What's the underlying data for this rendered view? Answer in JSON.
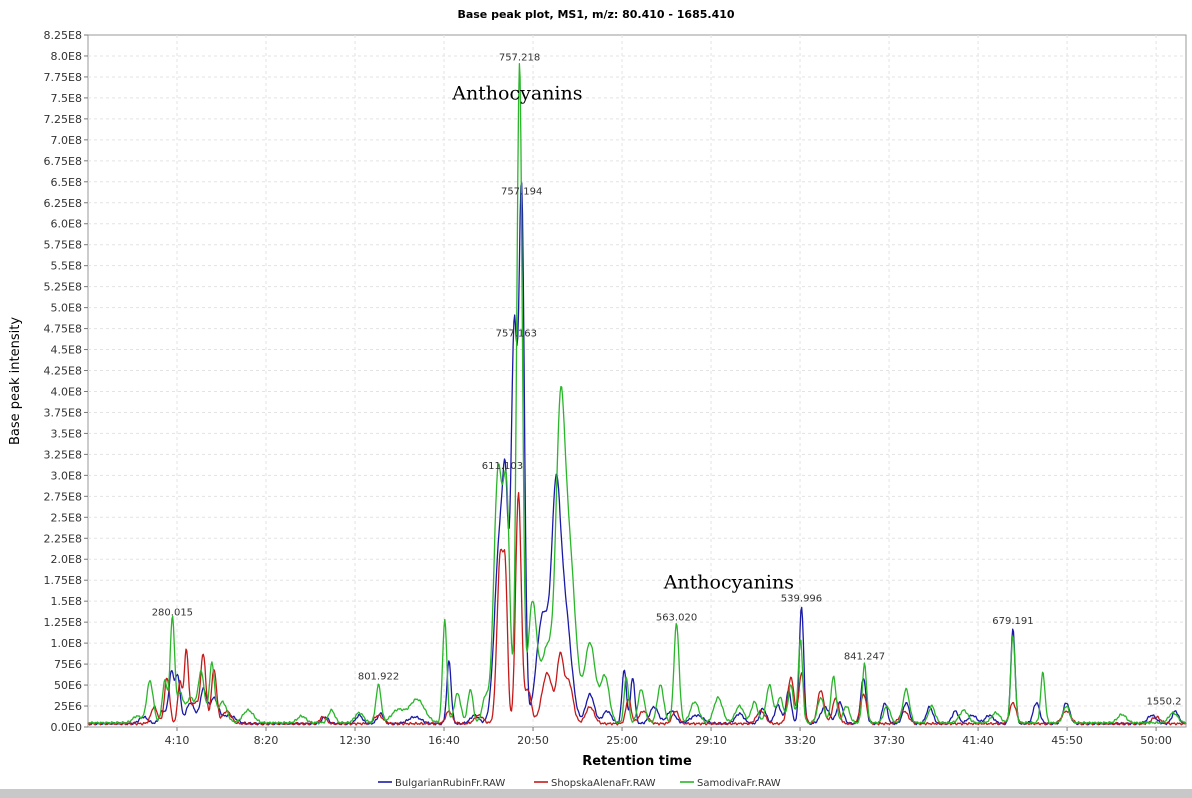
{
  "chart_data": {
    "type": "line",
    "title": "Base peak plot, MS1, m/z: 80.410 - 1685.410",
    "xlabel": "Retention time",
    "ylabel": "Base peak intensity",
    "x_unit": "minutes",
    "xlim": [
      0,
      51.4
    ],
    "ylim": [
      0,
      825000000
    ],
    "y_ticks": [
      "0.0E0",
      "25E6",
      "50E6",
      "75E6",
      "1.0E8",
      "1.25E8",
      "1.5E8",
      "1.75E8",
      "2.0E8",
      "2.25E8",
      "2.5E8",
      "2.75E8",
      "3.0E8",
      "3.25E8",
      "3.5E8",
      "3.75E8",
      "4.0E8",
      "4.25E8",
      "4.5E8",
      "4.75E8",
      "5.0E8",
      "5.25E8",
      "5.5E8",
      "5.75E8",
      "6.0E8",
      "6.25E8",
      "6.5E8",
      "6.75E8",
      "7.0E8",
      "7.25E8",
      "7.5E8",
      "7.75E8",
      "8.0E8",
      "8.25E8"
    ],
    "x_ticks": [
      {
        "label": "4:10",
        "value": 4.1667
      },
      {
        "label": "8:20",
        "value": 8.3333
      },
      {
        "label": "12:30",
        "value": 12.5
      },
      {
        "label": "16:40",
        "value": 16.6667
      },
      {
        "label": "20:50",
        "value": 20.8333
      },
      {
        "label": "25:00",
        "value": 25.0
      },
      {
        "label": "29:10",
        "value": 29.1667
      },
      {
        "label": "33:20",
        "value": 33.3333
      },
      {
        "label": "37:30",
        "value": 37.5
      },
      {
        "label": "41:40",
        "value": 41.6667
      },
      {
        "label": "45:50",
        "value": 45.8333
      },
      {
        "label": "50:00",
        "value": 50.0
      }
    ],
    "grid": true,
    "legend_position": "bottom",
    "series": [
      {
        "name": "BulgarianRubinFr.RAW",
        "color": "#1a1aa6",
        "baseline": 4000000,
        "peaks": [
          [
            2.6,
            8000000.0,
            0.2
          ],
          [
            3.5,
            15000000.0,
            0.15
          ],
          [
            3.9,
            60000000.0,
            0.12
          ],
          [
            4.2,
            55000000.0,
            0.12
          ],
          [
            4.8,
            25000000.0,
            0.2
          ],
          [
            5.4,
            40000000.0,
            0.15
          ],
          [
            5.9,
            30000000.0,
            0.2
          ],
          [
            6.6,
            10000000.0,
            0.3
          ],
          [
            11.1,
            8000000.0,
            0.15
          ],
          [
            12.7,
            10000000.0,
            0.15
          ],
          [
            13.7,
            12000000.0,
            0.15
          ],
          [
            15.3,
            8000000.0,
            0.3
          ],
          [
            16.9,
            75000000.0,
            0.1
          ],
          [
            18.1,
            10000000.0,
            0.2
          ],
          [
            19.3,
            230000000.0,
            0.25
          ],
          [
            19.55,
            160000000.0,
            0.12
          ],
          [
            19.95,
            460000000.0,
            0.14
          ],
          [
            20.3,
            625000000.0,
            0.13
          ],
          [
            21.3,
            130000000.0,
            0.3
          ],
          [
            21.9,
            220000000.0,
            0.2
          ],
          [
            22.3,
            140000000.0,
            0.3
          ],
          [
            23.5,
            35000000.0,
            0.2
          ],
          [
            24.3,
            15000000.0,
            0.2
          ],
          [
            25.1,
            65000000.0,
            0.1
          ],
          [
            25.5,
            55000000.0,
            0.1
          ],
          [
            26.5,
            20000000.0,
            0.2
          ],
          [
            27.3,
            15000000.0,
            0.2
          ],
          [
            28.5,
            10000000.0,
            0.3
          ],
          [
            30.5,
            12000000.0,
            0.2
          ],
          [
            31.6,
            18000000.0,
            0.15
          ],
          [
            32.3,
            22000000.0,
            0.15
          ],
          [
            32.8,
            40000000.0,
            0.12
          ],
          [
            33.4,
            140000000.0,
            0.1
          ],
          [
            34.5,
            20000000.0,
            0.2
          ],
          [
            35.2,
            25000000.0,
            0.15
          ],
          [
            36.3,
            55000000.0,
            0.12
          ],
          [
            37.3,
            25000000.0,
            0.12
          ],
          [
            38.3,
            25000000.0,
            0.15
          ],
          [
            39.4,
            20000000.0,
            0.15
          ],
          [
            40.6,
            15000000.0,
            0.15
          ],
          [
            41.4,
            10000000.0,
            0.2
          ],
          [
            42.2,
            10000000.0,
            0.2
          ],
          [
            43.3,
            113000000.0,
            0.1
          ],
          [
            44.4,
            25000000.0,
            0.15
          ],
          [
            45.8,
            25000000.0,
            0.15
          ],
          [
            49.8,
            10000000.0,
            0.2
          ],
          [
            50.9,
            15000000.0,
            0.15
          ]
        ]
      },
      {
        "name": "ShopskaAlenaFr.RAW",
        "color": "#c41a1a",
        "baseline": 4000000,
        "peaks": [
          [
            3.1,
            20000000.0,
            0.15
          ],
          [
            3.7,
            55000000.0,
            0.12
          ],
          [
            4.3,
            50000000.0,
            0.1
          ],
          [
            4.6,
            85000000.0,
            0.1
          ],
          [
            5.0,
            25000000.0,
            0.2
          ],
          [
            5.4,
            80000000.0,
            0.12
          ],
          [
            5.9,
            65000000.0,
            0.12
          ],
          [
            6.5,
            15000000.0,
            0.2
          ],
          [
            11.0,
            8000000.0,
            0.15
          ],
          [
            13.6,
            10000000.0,
            0.2
          ],
          [
            16.9,
            15000000.0,
            0.15
          ],
          [
            18.3,
            10000000.0,
            0.2
          ],
          [
            19.3,
            200000000.0,
            0.15
          ],
          [
            19.55,
            140000000.0,
            0.1
          ],
          [
            20.15,
            275000000.0,
            0.13
          ],
          [
            20.6,
            40000000.0,
            0.15
          ],
          [
            21.5,
            60000000.0,
            0.25
          ],
          [
            22.1,
            75000000.0,
            0.15
          ],
          [
            22.5,
            50000000.0,
            0.2
          ],
          [
            23.5,
            20000000.0,
            0.2
          ],
          [
            25.3,
            30000000.0,
            0.12
          ],
          [
            26.0,
            15000000.0,
            0.2
          ],
          [
            27.5,
            15000000.0,
            0.15
          ],
          [
            31.5,
            15000000.0,
            0.2
          ],
          [
            32.9,
            55000000.0,
            0.15
          ],
          [
            33.4,
            60000000.0,
            0.12
          ],
          [
            34.3,
            40000000.0,
            0.15
          ],
          [
            35.0,
            30000000.0,
            0.15
          ],
          [
            36.3,
            35000000.0,
            0.15
          ],
          [
            38.2,
            15000000.0,
            0.2
          ],
          [
            43.3,
            25000000.0,
            0.15
          ],
          [
            45.8,
            15000000.0,
            0.2
          ],
          [
            50.0,
            8000000.0,
            0.2
          ]
        ]
      },
      {
        "name": "SamodivaFr.RAW",
        "color": "#2ab52a",
        "baseline": 5000000,
        "peaks": [
          [
            2.3,
            8000000.0,
            0.2
          ],
          [
            2.9,
            50000000.0,
            0.15
          ],
          [
            3.6,
            50000000.0,
            0.12
          ],
          [
            3.95,
            125000000.0,
            0.1
          ],
          [
            4.3,
            35000000.0,
            0.15
          ],
          [
            4.8,
            30000000.0,
            0.2
          ],
          [
            5.3,
            60000000.0,
            0.15
          ],
          [
            5.8,
            70000000.0,
            0.12
          ],
          [
            6.3,
            25000000.0,
            0.2
          ],
          [
            7.5,
            15000000.0,
            0.25
          ],
          [
            10.0,
            8000000.0,
            0.2
          ],
          [
            11.4,
            15000000.0,
            0.15
          ],
          [
            12.7,
            12000000.0,
            0.2
          ],
          [
            13.6,
            45000000.0,
            0.12
          ],
          [
            14.5,
            15000000.0,
            0.3
          ],
          [
            15.4,
            28000000.0,
            0.35
          ],
          [
            16.7,
            123000000.0,
            0.1
          ],
          [
            17.3,
            35000000.0,
            0.15
          ],
          [
            17.9,
            40000000.0,
            0.12
          ],
          [
            18.6,
            30000000.0,
            0.15
          ],
          [
            19.2,
            300000000.0,
            0.2
          ],
          [
            19.6,
            250000000.0,
            0.15
          ],
          [
            20.2,
            785000000.0,
            0.13
          ],
          [
            20.8,
            140000000.0,
            0.2
          ],
          [
            21.5,
            90000000.0,
            0.3
          ],
          [
            22.1,
            295000000.0,
            0.2
          ],
          [
            22.5,
            210000000.0,
            0.3
          ],
          [
            23.5,
            95000000.0,
            0.25
          ],
          [
            24.2,
            55000000.0,
            0.2
          ],
          [
            25.2,
            55000000.0,
            0.1
          ],
          [
            25.9,
            40000000.0,
            0.15
          ],
          [
            26.8,
            45000000.0,
            0.15
          ],
          [
            27.55,
            118000000.0,
            0.12
          ],
          [
            28.4,
            25000000.0,
            0.2
          ],
          [
            29.5,
            30000000.0,
            0.2
          ],
          [
            30.5,
            20000000.0,
            0.2
          ],
          [
            31.2,
            25000000.0,
            0.15
          ],
          [
            31.9,
            45000000.0,
            0.15
          ],
          [
            32.4,
            30000000.0,
            0.15
          ],
          [
            32.9,
            45000000.0,
            0.12
          ],
          [
            33.35,
            100000000.0,
            0.1
          ],
          [
            34.3,
            30000000.0,
            0.15
          ],
          [
            34.9,
            55000000.0,
            0.12
          ],
          [
            35.5,
            20000000.0,
            0.15
          ],
          [
            36.35,
            70000000.0,
            0.1
          ],
          [
            37.4,
            20000000.0,
            0.15
          ],
          [
            38.3,
            40000000.0,
            0.15
          ],
          [
            39.5,
            20000000.0,
            0.15
          ],
          [
            41.0,
            15000000.0,
            0.2
          ],
          [
            42.5,
            12000000.0,
            0.2
          ],
          [
            43.3,
            105000000.0,
            0.1
          ],
          [
            44.7,
            60000000.0,
            0.1
          ],
          [
            45.8,
            20000000.0,
            0.15
          ],
          [
            48.4,
            10000000.0,
            0.2
          ],
          [
            50.8,
            12000000.0,
            0.2
          ]
        ]
      }
    ],
    "peak_labels": [
      {
        "text": "757.218",
        "x": 20.2,
        "y": 790000000
      },
      {
        "text": "757.194",
        "x": 20.3,
        "y": 630000000
      },
      {
        "text": "757.163",
        "x": 20.05,
        "y": 461000000
      },
      {
        "text": "611.103",
        "x": 19.4,
        "y": 303000000
      },
      {
        "text": "280.015",
        "x": 3.95,
        "y": 128000000
      },
      {
        "text": "801.922",
        "x": 13.6,
        "y": 52000000
      },
      {
        "text": "563.020",
        "x": 27.55,
        "y": 122000000
      },
      {
        "text": "539.996",
        "x": 33.4,
        "y": 145000000
      },
      {
        "text": "841.247",
        "x": 36.35,
        "y": 76000000
      },
      {
        "text": "679.191",
        "x": 43.3,
        "y": 118000000
      },
      {
        "text": "1550.2",
        "x": 51.3,
        "y": 22000000
      }
    ],
    "annotations": [
      {
        "text": "Anthocyanins",
        "x": 20.1,
        "y": 748000000
      },
      {
        "text": "Anthocyanins",
        "x": 30.0,
        "y": 165000000
      }
    ]
  }
}
